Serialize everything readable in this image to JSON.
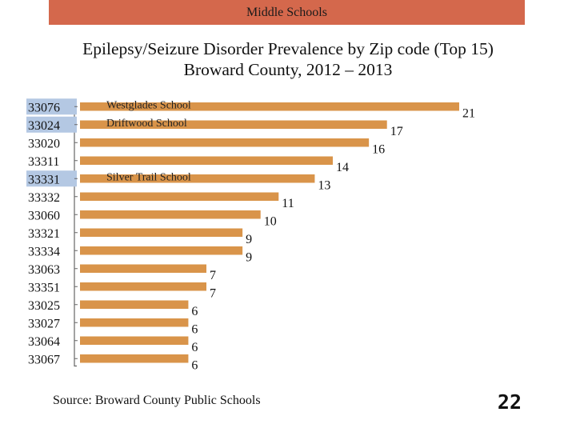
{
  "banner": {
    "text": "Middle Schools"
  },
  "title": {
    "line1": "Epilepsy/Seizure Disorder Prevalence by Zip code (Top 15)",
    "line2": "Broward County, 2012 – 2013"
  },
  "source": "Source: Broward County Public Schools",
  "slide_number": "22",
  "colors": {
    "banner": "#d4684c",
    "bar": "#d9944a",
    "highlight": "#b4c8e3"
  },
  "chart_data": {
    "type": "bar",
    "orientation": "horizontal",
    "categories": [
      "33076",
      "33024",
      "33020",
      "33311",
      "33331",
      "33332",
      "33060",
      "33321",
      "33334",
      "33063",
      "33351",
      "33025",
      "33027",
      "33064",
      "33067"
    ],
    "values": [
      21,
      17,
      16,
      14,
      13,
      11,
      10,
      9,
      9,
      7,
      7,
      6,
      6,
      6,
      6
    ],
    "highlighted_categories": [
      "33076",
      "33024",
      "33331"
    ],
    "annotations": [
      {
        "category": "33076",
        "text": "Westglades School"
      },
      {
        "category": "33024",
        "text": "Driftwood School"
      },
      {
        "category": "33331",
        "text": "Silver Trail School"
      }
    ],
    "xlim": [
      0,
      21
    ],
    "grid": false,
    "legend": "none"
  }
}
